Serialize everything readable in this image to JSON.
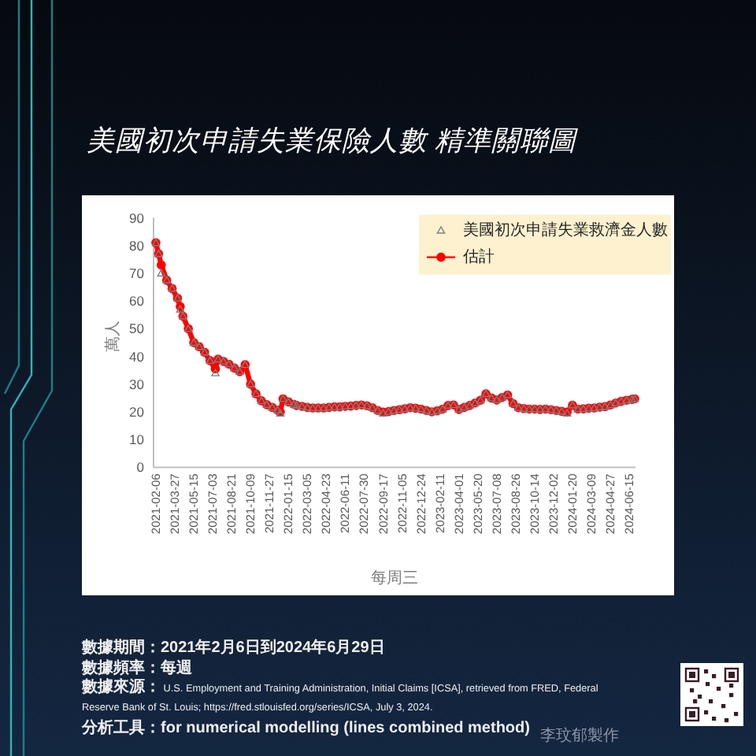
{
  "chart_data": {
    "type": "line",
    "title": "美國初次申請失業保險人數 精準關聯圖",
    "xlabel": "每周三",
    "ylabel": "萬人",
    "x": [
      "2021-02-06",
      "2021-02-13",
      "2021-02-20",
      "2021-03-06",
      "2021-03-20",
      "2021-04-03",
      "2021-04-10",
      "2021-04-17",
      "2021-05-01",
      "2021-05-15",
      "2021-05-29",
      "2021-06-12",
      "2021-06-26",
      "2021-07-10",
      "2021-07-17",
      "2021-07-31",
      "2021-08-14",
      "2021-08-28",
      "2021-09-11",
      "2021-09-25",
      "2021-10-09",
      "2021-10-23",
      "2021-11-06",
      "2021-11-20",
      "2021-12-04",
      "2021-12-18",
      "2021-12-25",
      "2022-01-01",
      "2022-01-15",
      "2022-01-29",
      "2022-02-05",
      "2022-02-19",
      "2022-03-05",
      "2022-03-19",
      "2022-04-02",
      "2022-04-16",
      "2022-04-30",
      "2022-05-14",
      "2022-05-28",
      "2022-06-11",
      "2022-06-25",
      "2022-07-09",
      "2022-07-23",
      "2022-08-06",
      "2022-08-20",
      "2022-09-03",
      "2022-09-17",
      "2022-10-01",
      "2022-10-15",
      "2022-10-29",
      "2022-11-12",
      "2022-11-26",
      "2022-12-10",
      "2022-12-24",
      "2023-01-07",
      "2023-01-21",
      "2023-02-04",
      "2023-02-18",
      "2023-03-04",
      "2023-03-18",
      "2023-04-01",
      "2023-04-15",
      "2023-04-29",
      "2023-05-13",
      "2023-05-27",
      "2023-06-10",
      "2023-06-24",
      "2023-07-08",
      "2023-07-22",
      "2023-08-05",
      "2023-08-19",
      "2023-09-02",
      "2023-09-16",
      "2023-09-30",
      "2023-10-14",
      "2023-10-28",
      "2023-11-11",
      "2023-11-25",
      "2023-12-09",
      "2023-12-23",
      "2024-01-06",
      "2024-01-20",
      "2024-02-03",
      "2024-02-17",
      "2024-03-02",
      "2024-03-16",
      "2024-03-30",
      "2024-04-13",
      "2024-04-27",
      "2024-05-11",
      "2024-05-25",
      "2024-06-08",
      "2024-06-22",
      "2024-06-29"
    ],
    "xlim": [
      "2021-01-31",
      "2024-07-01"
    ],
    "xticks": [
      "2021-02-06",
      "2021-03-27",
      "2021-05-15",
      "2021-07-03",
      "2021-08-21",
      "2021-10-09",
      "2021-11-27",
      "2022-01-15",
      "2022-03-05",
      "2022-04-23",
      "2022-06-11",
      "2022-07-30",
      "2022-09-17",
      "2022-11-05",
      "2022-12-24",
      "2023-02-11",
      "2023-04-01",
      "2023-05-20",
      "2023-07-08",
      "2023-08-26",
      "2023-10-14",
      "2023-12-02",
      "2024-01-20",
      "2024-03-09",
      "2024-04-27",
      "2024-06-15"
    ],
    "ylim": [
      0,
      90
    ],
    "yticks": [
      0,
      10,
      20,
      30,
      40,
      50,
      60,
      70,
      80,
      90
    ],
    "legend": "top right",
    "series": [
      {
        "name": "美國初次申請失業救濟金人數",
        "type": "scatter",
        "marker": "triangle",
        "color": "#7f7f7f",
        "values": [
          81,
          77,
          70,
          67.5,
          64.5,
          61,
          57,
          54.5,
          50,
          45,
          43.5,
          41.5,
          38.5,
          34,
          39,
          38.2,
          37.2,
          35.8,
          34.5,
          37,
          30,
          26.5,
          24,
          22.6,
          21.6,
          20.6,
          19.5,
          24.7,
          23.6,
          22.7,
          22.3,
          22,
          21.6,
          21.4,
          21.4,
          21.4,
          21.6,
          21.8,
          21.8,
          22,
          22.1,
          22.3,
          22.5,
          22.2,
          21.5,
          20.5,
          19.5,
          20.1,
          20.5,
          20.8,
          21.1,
          21.5,
          21.3,
          21,
          20.5,
          20,
          20.4,
          21,
          22.3,
          22.5,
          20.9,
          21.6,
          22.3,
          23.2,
          24.2,
          26.5,
          25,
          24.3,
          25.2,
          26.1,
          23,
          21.5,
          21.2,
          21,
          21,
          20.9,
          21,
          20.8,
          20.5,
          20.2,
          19.5,
          22.4,
          21,
          21.1,
          21.3,
          21.4,
          21.7,
          21.9,
          22.5,
          23.2,
          23.8,
          24.2,
          24.5,
          24.7
        ]
      },
      {
        "name": "估計",
        "type": "line",
        "marker": "circle",
        "color": "#ff0000",
        "values": [
          81,
          77,
          73,
          67.5,
          64.5,
          61,
          58,
          54.5,
          50,
          45,
          43.5,
          41.5,
          38.5,
          35.5,
          39,
          38.2,
          37.2,
          35.8,
          34.5,
          37,
          30,
          26.5,
          24,
          22.6,
          21.6,
          20.6,
          20,
          24.7,
          23.6,
          22.7,
          22.3,
          22,
          21.6,
          21.4,
          21.4,
          21.4,
          21.6,
          21.8,
          21.8,
          22,
          22.1,
          22.3,
          22.5,
          22.2,
          21.5,
          20.5,
          19.9,
          20.1,
          20.5,
          20.8,
          21.1,
          21.5,
          21.3,
          21,
          20.5,
          20,
          20.4,
          21,
          22.3,
          22.5,
          20.9,
          21.6,
          22.3,
          23.2,
          24.2,
          26.5,
          25,
          24.3,
          25.2,
          26.1,
          23,
          21.5,
          21.2,
          21,
          21,
          20.9,
          21,
          20.8,
          20.5,
          20.2,
          19.9,
          22.4,
          21,
          21.1,
          21.3,
          21.4,
          21.7,
          21.9,
          22.5,
          23.2,
          23.8,
          24.2,
          24.5,
          24.7
        ]
      }
    ],
    "annotations": [
      "數據期間：2021年2月6日到2024年6月29日",
      "數據頻率：每週",
      "數據來源： U.S. Employment and Training Administration, Initial Claims [ICSA], retrieved from FRED, Federal Reserve Bank of St. Louis; https://fred.stlouisfed.org/series/ICSA, July 3, 2024.",
      "分析工具：for numerical modelling (lines combined method)",
      "李玟郁製作"
    ]
  }
}
